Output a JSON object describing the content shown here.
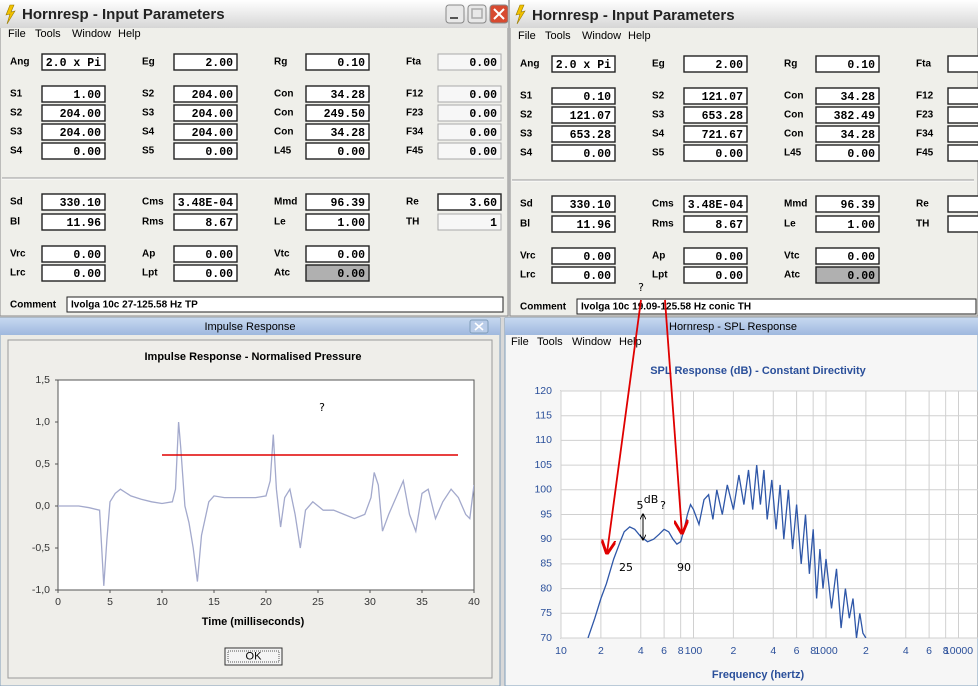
{
  "windows": {
    "left": {
      "title": "Hornresp - Input Parameters",
      "menu": [
        "File",
        "Tools",
        "Window",
        "Help"
      ],
      "rows": [
        [
          {
            "label": "Ang",
            "value": "2.0 x Pi"
          },
          {
            "label": "Eg",
            "value": "2.00"
          },
          {
            "label": "Rg",
            "value": "0.10"
          },
          {
            "label": "Fta",
            "value": "0.00",
            "disabled": true
          }
        ],
        [
          {
            "label": "S1",
            "value": "1.00"
          },
          {
            "label": "S2",
            "value": "204.00"
          },
          {
            "label": "Con",
            "value": "34.28"
          },
          {
            "label": "F12",
            "value": "0.00",
            "disabled": true
          }
        ],
        [
          {
            "label": "S2",
            "value": "204.00"
          },
          {
            "label": "S3",
            "value": "204.00"
          },
          {
            "label": "Con",
            "value": "249.50"
          },
          {
            "label": "F23",
            "value": "0.00",
            "disabled": true
          }
        ],
        [
          {
            "label": "S3",
            "value": "204.00"
          },
          {
            "label": "S4",
            "value": "204.00"
          },
          {
            "label": "Con",
            "value": "34.28"
          },
          {
            "label": "F34",
            "value": "0.00",
            "disabled": true
          }
        ],
        [
          {
            "label": "S4",
            "value": "0.00"
          },
          {
            "label": "S5",
            "value": "0.00"
          },
          {
            "label": "L45",
            "value": "0.00"
          },
          {
            "label": "F45",
            "value": "0.00",
            "disabled": true
          }
        ],
        [
          {
            "label": "Sd",
            "value": "330.10"
          },
          {
            "label": "Cms",
            "value": "3.48E-04"
          },
          {
            "label": "Mmd",
            "value": "96.39"
          },
          {
            "label": "Re",
            "value": "3.60"
          }
        ],
        [
          {
            "label": "Bl",
            "value": "11.96"
          },
          {
            "label": "Rms",
            "value": "8.67"
          },
          {
            "label": "Le",
            "value": "1.00"
          },
          {
            "label": "TH",
            "value": "1",
            "label_color": "#e00000",
            "disabled": true
          }
        ],
        [
          {
            "label": "Vrc",
            "value": "0.00"
          },
          {
            "label": "Ap",
            "value": "0.00"
          },
          {
            "label": "Vtc",
            "value": "0.00"
          }
        ],
        [
          {
            "label": "Lrc",
            "value": "0.00"
          },
          {
            "label": "Lpt",
            "value": "0.00"
          },
          {
            "label": "Atc",
            "value": "0.00",
            "highlighted": true
          }
        ]
      ],
      "comment_label": "Comment",
      "comment": "Ivolga 10c 27-125.58 Hz TP",
      "comment_color": "#d00000"
    },
    "right": {
      "title": "Hornresp - Input Parameters",
      "menu": [
        "File",
        "Tools",
        "Window",
        "Help"
      ],
      "rows": [
        [
          {
            "label": "Ang",
            "value": "2.0 x Pi"
          },
          {
            "label": "Eg",
            "value": "2.00"
          },
          {
            "label": "Rg",
            "value": "0.10"
          },
          {
            "label": "Fta"
          }
        ],
        [
          {
            "label": "S1",
            "value": "0.10"
          },
          {
            "label": "S2",
            "value": "121.07"
          },
          {
            "label": "Con",
            "value": "34.28"
          },
          {
            "label": "F12"
          }
        ],
        [
          {
            "label": "S2",
            "value": "121.07"
          },
          {
            "label": "S3",
            "value": "653.28"
          },
          {
            "label": "Con",
            "value": "382.49"
          },
          {
            "label": "F23"
          }
        ],
        [
          {
            "label": "S3",
            "value": "653.28"
          },
          {
            "label": "S4",
            "value": "721.67"
          },
          {
            "label": "Con",
            "value": "34.28"
          },
          {
            "label": "F34"
          }
        ],
        [
          {
            "label": "S4",
            "value": "0.00"
          },
          {
            "label": "S5",
            "value": "0.00"
          },
          {
            "label": "L45",
            "value": "0.00"
          },
          {
            "label": "F45"
          }
        ],
        [
          {
            "label": "Sd",
            "value": "330.10"
          },
          {
            "label": "Cms",
            "value": "3.48E-04"
          },
          {
            "label": "Mmd",
            "value": "96.39"
          },
          {
            "label": "Re"
          }
        ],
        [
          {
            "label": "Bl",
            "value": "11.96"
          },
          {
            "label": "Rms",
            "value": "8.67"
          },
          {
            "label": "Le",
            "value": "1.00"
          },
          {
            "label": "TH",
            "label_color": "#e00000"
          }
        ],
        [
          {
            "label": "Vrc",
            "value": "0.00"
          },
          {
            "label": "Ap",
            "value": "0.00"
          },
          {
            "label": "Vtc",
            "value": "0.00"
          }
        ],
        [
          {
            "label": "Lrc",
            "value": "0.00"
          },
          {
            "label": "Lpt",
            "value": "0.00"
          },
          {
            "label": "Atc",
            "value": "0.00",
            "highlighted": true
          }
        ]
      ],
      "comment_label": "Comment",
      "comment": "Ivolga 10c 19.09-125.58 Hz conic TH",
      "comment_color": "#000000"
    },
    "impulse": {
      "title": "Impulse Response",
      "button": "OK"
    },
    "spl": {
      "title": "Hornresp - SPL Response",
      "menu": [
        "File",
        "Tools",
        "Window",
        "Help"
      ]
    }
  },
  "annotations": [
    "?",
    "?",
    "5",
    "dB",
    "?",
    "25",
    "90"
  ],
  "chart_data": [
    {
      "type": "line",
      "title": "Impulse Response - Normalised Pressure",
      "x_label": "Time (milliseconds)",
      "color": "#a3a9cc",
      "grid": false,
      "x": [
        0,
        1,
        2,
        3,
        4,
        4.2,
        4.4,
        4.7,
        5,
        5.5,
        6,
        7,
        8,
        9,
        10,
        11,
        11.3,
        11.6,
        11.8,
        12.2,
        12.6,
        13,
        13.4,
        13.8,
        14.5,
        15,
        16,
        17,
        18,
        19,
        20,
        20.4,
        20.7,
        21,
        21.4,
        21.8,
        22.3,
        22.8,
        23.3,
        23.8,
        24.5,
        25.5,
        26.5,
        27.5,
        28.5,
        29.5,
        30.1,
        30.4,
        30.8,
        31.2,
        31.8,
        32.5,
        33.2,
        33.8,
        34.4,
        35,
        35.6,
        36.3,
        37,
        37.8,
        38.5,
        39.2,
        39.6,
        40
      ],
      "values": [
        0,
        0,
        0,
        -0.02,
        -0.05,
        -0.5,
        -0.95,
        -0.4,
        0.05,
        0.15,
        0.2,
        0.12,
        0.08,
        0.05,
        0.03,
        0.05,
        0.2,
        1.0,
        0.7,
        0,
        -0.2,
        -0.5,
        -0.9,
        -0.35,
        0.05,
        0.12,
        0.1,
        0.1,
        0.1,
        0.1,
        0.12,
        0.3,
        0.85,
        0.2,
        -0.25,
        0.1,
        0.2,
        -0.1,
        -0.5,
        -0.05,
        0.05,
        -0.05,
        -0.05,
        -0.1,
        -0.15,
        -0.1,
        0.1,
        0.4,
        0.25,
        -0.3,
        -0.1,
        0.1,
        0.3,
        -0.1,
        -0.3,
        0.15,
        0.2,
        -0.15,
        0.05,
        0.2,
        0.1,
        -0.1,
        -0.15,
        0.25
      ],
      "xlim": [
        0,
        40
      ],
      "ylim": [
        -1,
        1.5
      ],
      "xticks": [
        0,
        5,
        10,
        15,
        20,
        25,
        30,
        35,
        40
      ],
      "yticks": [
        {
          "value": 1.5,
          "label": "1,5"
        },
        {
          "value": 1,
          "label": "1,0"
        },
        {
          "value": 0.5,
          "label": "0,5"
        },
        {
          "value": 0,
          "label": "0,0"
        },
        {
          "value": -0.5,
          "label": "-0,5"
        },
        {
          "value": -1,
          "label": "-1,0"
        }
      ]
    },
    {
      "type": "line",
      "title": "SPL Response (dB) - Constant Directivity",
      "x_label": "Frequency (hertz)",
      "color": "#2f57a8",
      "grid": true,
      "xscale": "log",
      "x": [
        16,
        18,
        20,
        22,
        25,
        28,
        30,
        33,
        36,
        40,
        45,
        50,
        55,
        60,
        65,
        70,
        75,
        80,
        85,
        90,
        95,
        100,
        110,
        120,
        130,
        140,
        150,
        165,
        180,
        200,
        220,
        240,
        260,
        280,
        300,
        320,
        340,
        360,
        390,
        420,
        450,
        480,
        520,
        560,
        600,
        650,
        700,
        750,
        800,
        850,
        900,
        950,
        1000,
        1100,
        1200,
        1300,
        1400,
        1500,
        1600,
        1700,
        1800,
        1900,
        2000
      ],
      "values": [
        70,
        74,
        78,
        81,
        86,
        89.5,
        91.5,
        92.5,
        92,
        90.5,
        89.5,
        90,
        91,
        92,
        91.5,
        90,
        89,
        89.5,
        92,
        95,
        97,
        96,
        93,
        98,
        99,
        94,
        100,
        95,
        101,
        96,
        103,
        97,
        104,
        96,
        105,
        97,
        104,
        94,
        102,
        92,
        101,
        90,
        100,
        88,
        97,
        85,
        95,
        83,
        92,
        78,
        88,
        80,
        86,
        76,
        84,
        72,
        80,
        74,
        78,
        70,
        75,
        71,
        70
      ],
      "xlim": [
        10,
        20000
      ],
      "ylim": [
        70,
        120
      ],
      "xticks": [
        10,
        {
          "value": 20,
          "label": "2"
        },
        {
          "value": 40,
          "label": "4"
        },
        {
          "value": 60,
          "label": "6"
        },
        {
          "value": 80,
          "label": "8"
        },
        100,
        {
          "value": 200,
          "label": "2"
        },
        {
          "value": 400,
          "label": "4"
        },
        {
          "value": 600,
          "label": "6"
        },
        {
          "value": 800,
          "label": "8"
        },
        1000,
        {
          "value": 2000,
          "label": "2"
        },
        {
          "value": 4000,
          "label": "4"
        },
        {
          "value": 6000,
          "label": "6"
        },
        {
          "value": 8000,
          "label": "8"
        },
        10000
      ],
      "yticks": [
        70,
        75,
        80,
        85,
        90,
        95,
        100,
        105,
        110,
        115,
        120
      ]
    }
  ]
}
